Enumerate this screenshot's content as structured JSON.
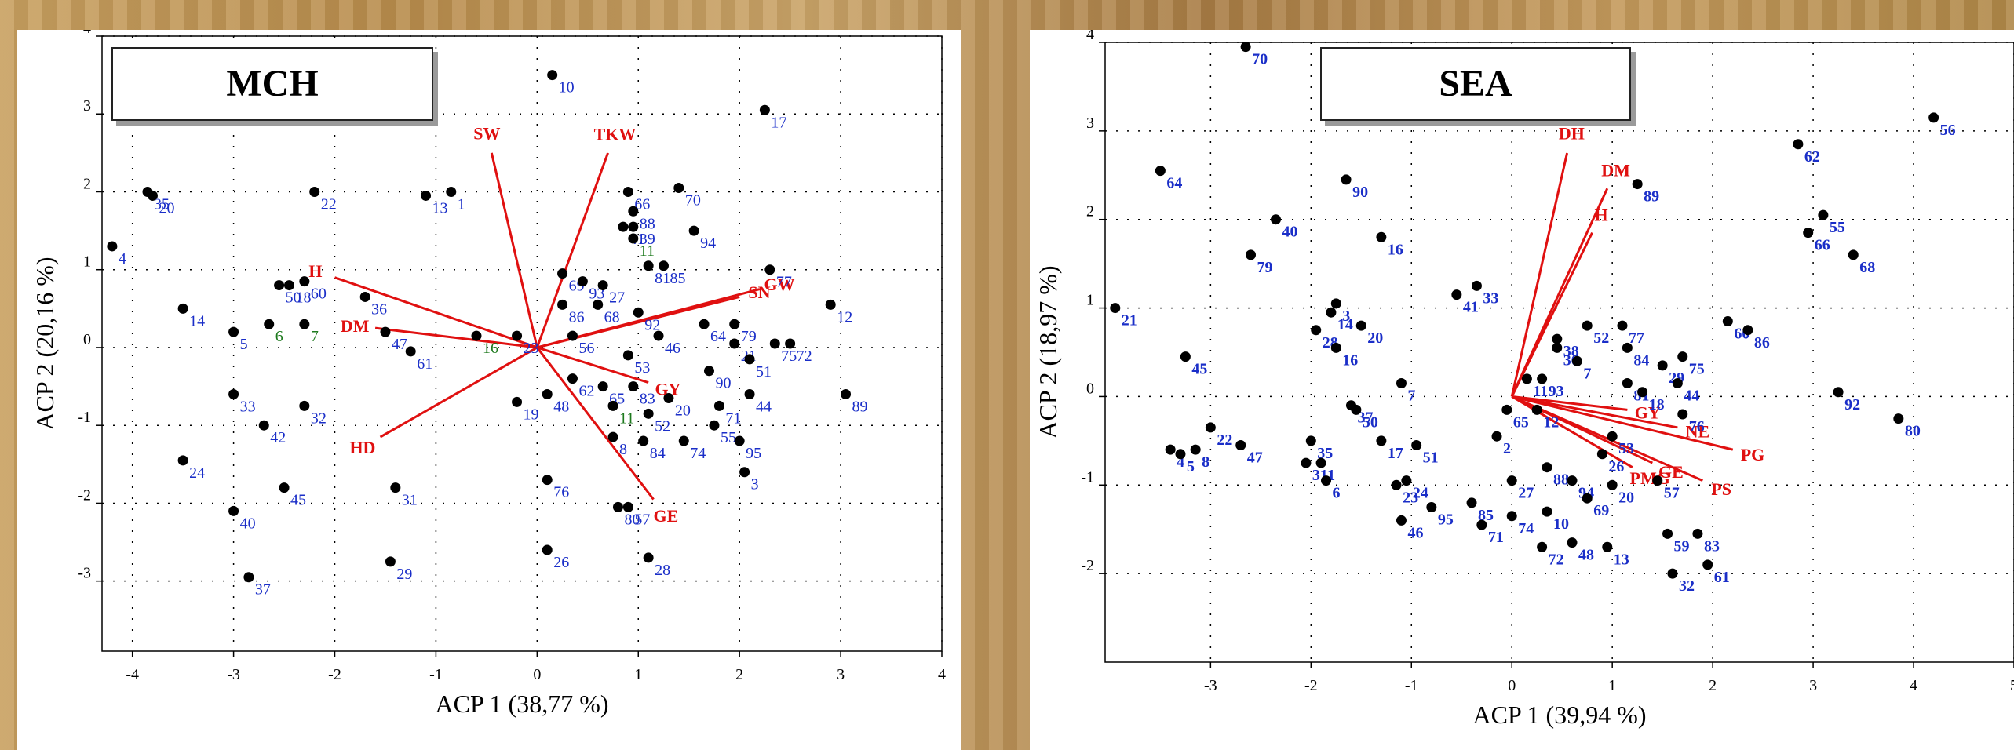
{
  "chart_data": [
    {
      "type": "scatter",
      "title": "MCH",
      "xlabel": "ACP 1 (38,77 %)",
      "ylabel": "ACP 2 (20,16 %)",
      "xlim": [
        -4.3,
        4.0
      ],
      "ylim": [
        -3.9,
        4.0
      ],
      "xticks": [
        "-4",
        "-3",
        "-2",
        "-1",
        "0",
        "1",
        "2",
        "3",
        "4"
      ],
      "yticks": [
        "4",
        "3",
        "2",
        "1",
        "0",
        "-1",
        "-2",
        "-3"
      ],
      "grid": true,
      "colors": {
        "points": "#000000",
        "labels": "#1a2ec8",
        "green_labels": "#1e7a1e",
        "vectors": "#e01010"
      },
      "points": [
        {
          "label": "10",
          "x": 0.15,
          "y": 3.5
        },
        {
          "label": "17",
          "x": 2.25,
          "y": 3.05
        },
        {
          "label": "35",
          "x": -3.85,
          "y": 2.0
        },
        {
          "label": "20",
          "x": -3.8,
          "y": 1.95
        },
        {
          "label": "22",
          "x": -2.2,
          "y": 2.0
        },
        {
          "label": "13",
          "x": -1.1,
          "y": 1.95
        },
        {
          "label": "1",
          "x": -0.85,
          "y": 2.0
        },
        {
          "label": "4",
          "x": -4.2,
          "y": 1.3
        },
        {
          "label": "14",
          "x": -3.5,
          "y": 0.5
        },
        {
          "label": "5",
          "x": -3.0,
          "y": 0.2
        },
        {
          "label": "50",
          "x": -2.55,
          "y": 0.8
        },
        {
          "label": "18",
          "x": -2.45,
          "y": 0.8
        },
        {
          "label": "60",
          "x": -2.3,
          "y": 0.85
        },
        {
          "label": "6",
          "x": -2.65,
          "y": 0.3
        },
        {
          "label": "7",
          "x": -2.3,
          "y": 0.3
        },
        {
          "label": "36",
          "x": -1.7,
          "y": 0.65
        },
        {
          "label": "47",
          "x": -1.5,
          "y": 0.2
        },
        {
          "label": "61",
          "x": -1.25,
          "y": -0.05
        },
        {
          "label": "16",
          "x": -0.6,
          "y": 0.15
        },
        {
          "label": "23",
          "x": -0.2,
          "y": 0.15
        },
        {
          "label": "33",
          "x": -3.0,
          "y": -0.6
        },
        {
          "label": "42",
          "x": -2.7,
          "y": -1.0
        },
        {
          "label": "32",
          "x": -2.3,
          "y": -0.75
        },
        {
          "label": "24",
          "x": -3.5,
          "y": -1.45
        },
        {
          "label": "45",
          "x": -2.5,
          "y": -1.8
        },
        {
          "label": "40",
          "x": -3.0,
          "y": -2.1
        },
        {
          "label": "37",
          "x": -2.85,
          "y": -2.95
        },
        {
          "label": "31",
          "x": -1.4,
          "y": -1.8
        },
        {
          "label": "29",
          "x": -1.45,
          "y": -2.75
        },
        {
          "label": "66",
          "x": 0.9,
          "y": 2.0
        },
        {
          "label": "70",
          "x": 1.4,
          "y": 2.05
        },
        {
          "label": "88",
          "x": 0.95,
          "y": 1.75
        },
        {
          "label": "39",
          "x": 0.95,
          "y": 1.55
        },
        {
          "label": "41",
          "x": 0.85,
          "y": 1.55
        },
        {
          "label": "11",
          "x": 0.95,
          "y": 1.4
        },
        {
          "label": "94",
          "x": 1.55,
          "y": 1.5
        },
        {
          "label": "81",
          "x": 1.1,
          "y": 1.05
        },
        {
          "label": "85",
          "x": 1.25,
          "y": 1.05
        },
        {
          "label": "69",
          "x": 0.25,
          "y": 0.95
        },
        {
          "label": "93",
          "x": 0.45,
          "y": 0.85
        },
        {
          "label": "27",
          "x": 0.65,
          "y": 0.8
        },
        {
          "label": "86",
          "x": 0.25,
          "y": 0.55
        },
        {
          "label": "68",
          "x": 0.6,
          "y": 0.55
        },
        {
          "label": "92",
          "x": 1.0,
          "y": 0.45
        },
        {
          "label": "56",
          "x": 0.35,
          "y": 0.15
        },
        {
          "label": "46",
          "x": 1.2,
          "y": 0.15
        },
        {
          "label": "53",
          "x": 0.9,
          "y": -0.1
        },
        {
          "label": "62",
          "x": 0.35,
          "y": -0.4
        },
        {
          "label": "65",
          "x": 0.65,
          "y": -0.5
        },
        {
          "label": "83",
          "x": 0.95,
          "y": -0.5
        },
        {
          "label": "48",
          "x": 0.1,
          "y": -0.6
        },
        {
          "label": "19",
          "x": -0.2,
          "y": -0.7
        },
        {
          "label": "11",
          "x": 0.75,
          "y": -0.75
        },
        {
          "label": "52",
          "x": 1.1,
          "y": -0.85
        },
        {
          "label": "8",
          "x": 0.75,
          "y": -1.15
        },
        {
          "label": "84",
          "x": 1.05,
          "y": -1.2
        },
        {
          "label": "74",
          "x": 1.45,
          "y": -1.2
        },
        {
          "label": "20",
          "x": 1.3,
          "y": -0.65
        },
        {
          "label": "77",
          "x": 2.3,
          "y": 1.0
        },
        {
          "label": "79",
          "x": 1.95,
          "y": 0.3
        },
        {
          "label": "64",
          "x": 1.65,
          "y": 0.3
        },
        {
          "label": "21",
          "x": 1.95,
          "y": 0.05
        },
        {
          "label": "90",
          "x": 1.7,
          "y": -0.3
        },
        {
          "label": "51",
          "x": 2.1,
          "y": -0.15
        },
        {
          "label": "75",
          "x": 2.35,
          "y": 0.05
        },
        {
          "label": "72",
          "x": 2.5,
          "y": 0.05
        },
        {
          "label": "12",
          "x": 2.9,
          "y": 0.55
        },
        {
          "label": "89",
          "x": 3.05,
          "y": -0.6
        },
        {
          "label": "44",
          "x": 2.1,
          "y": -0.6
        },
        {
          "label": "71",
          "x": 1.8,
          "y": -0.75
        },
        {
          "label": "55",
          "x": 1.75,
          "y": -1.0
        },
        {
          "label": "95",
          "x": 2.0,
          "y": -1.2
        },
        {
          "label": "3",
          "x": 2.05,
          "y": -1.6
        },
        {
          "label": "76",
          "x": 0.1,
          "y": -1.7
        },
        {
          "label": "80",
          "x": 0.8,
          "y": -2.05
        },
        {
          "label": "57",
          "x": 0.9,
          "y": -2.05
        },
        {
          "label": "26",
          "x": 0.1,
          "y": -2.6
        },
        {
          "label": "28",
          "x": 1.1,
          "y": -2.7
        }
      ],
      "green_labels": [
        "6",
        "7",
        "16",
        "11"
      ],
      "vectors": [
        {
          "name": "SW",
          "x": -0.45,
          "y": 2.5
        },
        {
          "name": "TKW",
          "x": 0.7,
          "y": 2.5
        },
        {
          "name": "H",
          "x": -2.0,
          "y": 0.9
        },
        {
          "name": "DM",
          "x": -1.6,
          "y": 0.25
        },
        {
          "name": "HD",
          "x": -1.55,
          "y": -1.15
        },
        {
          "name": "SN",
          "x": 2.0,
          "y": 0.65
        },
        {
          "name": "GW",
          "x": 2.2,
          "y": 0.75
        },
        {
          "name": "GY",
          "x": 1.1,
          "y": -0.45
        },
        {
          "name": "GE",
          "x": 1.15,
          "y": -1.95
        }
      ]
    },
    {
      "type": "scatter",
      "title": "SEA",
      "xlabel": "ACP 1 (39,94 %)",
      "ylabel": "ACP 2 (18,97 %)",
      "xlim": [
        -4.05,
        5.0
      ],
      "ylim": [
        -3.0,
        4.0
      ],
      "xticks": [
        "-3",
        "-2",
        "-1",
        "0",
        "1",
        "2",
        "3",
        "4",
        "5"
      ],
      "yticks": [
        "4",
        "3",
        "2",
        "1",
        "0",
        "-1",
        "-2"
      ],
      "grid": true,
      "colors": {
        "points": "#000000",
        "labels": "#1a2ec8",
        "vectors": "#e01010"
      },
      "points": [
        {
          "label": "70",
          "x": -2.65,
          "y": 3.95
        },
        {
          "label": "64",
          "x": -3.5,
          "y": 2.55
        },
        {
          "label": "90",
          "x": -1.65,
          "y": 2.45
        },
        {
          "label": "40",
          "x": -2.35,
          "y": 2.0
        },
        {
          "label": "79",
          "x": -2.6,
          "y": 1.6
        },
        {
          "label": "16",
          "x": -1.3,
          "y": 1.8
        },
        {
          "label": "3",
          "x": -1.75,
          "y": 1.05
        },
        {
          "label": "14",
          "x": -1.8,
          "y": 0.95
        },
        {
          "label": "28",
          "x": -1.95,
          "y": 0.75
        },
        {
          "label": "20",
          "x": -1.5,
          "y": 0.8
        },
        {
          "label": "16",
          "x": -1.75,
          "y": 0.55
        },
        {
          "label": "21",
          "x": -3.95,
          "y": 1.0
        },
        {
          "label": "45",
          "x": -3.25,
          "y": 0.45
        },
        {
          "label": "41",
          "x": -0.55,
          "y": 1.15
        },
        {
          "label": "33",
          "x": -0.35,
          "y": 1.25
        },
        {
          "label": "7",
          "x": -1.1,
          "y": 0.15
        },
        {
          "label": "37",
          "x": -1.6,
          "y": -0.1
        },
        {
          "label": "50",
          "x": -1.55,
          "y": -0.15
        },
        {
          "label": "22",
          "x": -3.0,
          "y": -0.35
        },
        {
          "label": "4",
          "x": -3.4,
          "y": -0.6
        },
        {
          "label": "5",
          "x": -3.3,
          "y": -0.65
        },
        {
          "label": "8",
          "x": -3.15,
          "y": -0.6
        },
        {
          "label": "47",
          "x": -2.7,
          "y": -0.55
        },
        {
          "label": "35",
          "x": -2.0,
          "y": -0.5
        },
        {
          "label": "1",
          "x": -1.9,
          "y": -0.75
        },
        {
          "label": "31",
          "x": -2.05,
          "y": -0.75
        },
        {
          "label": "6",
          "x": -1.85,
          "y": -0.95
        },
        {
          "label": "17",
          "x": -1.3,
          "y": -0.5
        },
        {
          "label": "51",
          "x": -0.95,
          "y": -0.55
        },
        {
          "label": "2",
          "x": -0.15,
          "y": -0.45
        },
        {
          "label": "24",
          "x": -1.05,
          "y": -0.95
        },
        {
          "label": "23",
          "x": -1.15,
          "y": -1.0
        },
        {
          "label": "46",
          "x": -1.1,
          "y": -1.4
        },
        {
          "label": "95",
          "x": -0.8,
          "y": -1.25
        },
        {
          "label": "85",
          "x": -0.4,
          "y": -1.2
        },
        {
          "label": "71",
          "x": -0.3,
          "y": -1.45
        },
        {
          "label": "27",
          "x": 0.0,
          "y": -0.95
        },
        {
          "label": "74",
          "x": 0.0,
          "y": -1.35
        },
        {
          "label": "10",
          "x": 0.35,
          "y": -1.3
        },
        {
          "label": "72",
          "x": 0.3,
          "y": -1.7
        },
        {
          "label": "48",
          "x": 0.6,
          "y": -1.65
        },
        {
          "label": "13",
          "x": 0.95,
          "y": -1.7
        },
        {
          "label": "88",
          "x": 0.35,
          "y": -0.8
        },
        {
          "label": "94",
          "x": 0.6,
          "y": -0.95
        },
        {
          "label": "26",
          "x": 0.9,
          "y": -0.65
        },
        {
          "label": "69",
          "x": 0.75,
          "y": -1.15
        },
        {
          "label": "20",
          "x": 1.0,
          "y": -1.0
        },
        {
          "label": "57",
          "x": 1.45,
          "y": -0.95
        },
        {
          "label": "65",
          "x": -0.05,
          "y": -0.15
        },
        {
          "label": "12",
          "x": 0.25,
          "y": -0.15
        },
        {
          "label": "53",
          "x": 1.0,
          "y": -0.45
        },
        {
          "label": "11",
          "x": 0.15,
          "y": 0.2
        },
        {
          "label": "93",
          "x": 0.3,
          "y": 0.2
        },
        {
          "label": "36",
          "x": 0.45,
          "y": 0.55
        },
        {
          "label": "38",
          "x": 0.45,
          "y": 0.65
        },
        {
          "label": "7",
          "x": 0.65,
          "y": 0.4
        },
        {
          "label": "52",
          "x": 0.75,
          "y": 0.8
        },
        {
          "label": "77",
          "x": 1.1,
          "y": 0.8
        },
        {
          "label": "84",
          "x": 1.15,
          "y": 0.55
        },
        {
          "label": "29",
          "x": 1.5,
          "y": 0.35
        },
        {
          "label": "75",
          "x": 1.7,
          "y": 0.45
        },
        {
          "label": "81",
          "x": 1.15,
          "y": 0.15
        },
        {
          "label": "18",
          "x": 1.3,
          "y": 0.05
        },
        {
          "label": "44",
          "x": 1.65,
          "y": 0.15
        },
        {
          "label": "76",
          "x": 1.7,
          "y": -0.2
        },
        {
          "label": "60",
          "x": 2.15,
          "y": 0.85
        },
        {
          "label": "86",
          "x": 2.35,
          "y": 0.75
        },
        {
          "label": "89",
          "x": 1.25,
          "y": 2.4
        },
        {
          "label": "62",
          "x": 2.85,
          "y": 2.85
        },
        {
          "label": "55",
          "x": 3.1,
          "y": 2.05
        },
        {
          "label": "66",
          "x": 2.95,
          "y": 1.85
        },
        {
          "label": "68",
          "x": 3.4,
          "y": 1.6
        },
        {
          "label": "92",
          "x": 3.25,
          "y": 0.05
        },
        {
          "label": "80",
          "x": 3.85,
          "y": -0.25
        },
        {
          "label": "56",
          "x": 4.2,
          "y": 3.15
        },
        {
          "label": "59",
          "x": 1.55,
          "y": -1.55
        },
        {
          "label": "83",
          "x": 1.85,
          "y": -1.55
        },
        {
          "label": "61",
          "x": 1.95,
          "y": -1.9
        },
        {
          "label": "32",
          "x": 1.6,
          "y": -2.0
        }
      ],
      "vectors": [
        {
          "name": "DH",
          "x": 0.55,
          "y": 2.75
        },
        {
          "name": "DM",
          "x": 0.95,
          "y": 2.35
        },
        {
          "name": "H",
          "x": 0.8,
          "y": 1.85
        },
        {
          "name": "GY",
          "x": 1.15,
          "y": -0.15
        },
        {
          "name": "NE",
          "x": 1.65,
          "y": -0.35
        },
        {
          "name": "PG",
          "x": 2.2,
          "y": -0.6
        },
        {
          "name": "GE",
          "x": 1.4,
          "y": -0.75
        },
        {
          "name": "PS",
          "x": 1.9,
          "y": -0.95
        },
        {
          "name": "PMG",
          "x": 1.2,
          "y": -0.8
        }
      ]
    }
  ]
}
